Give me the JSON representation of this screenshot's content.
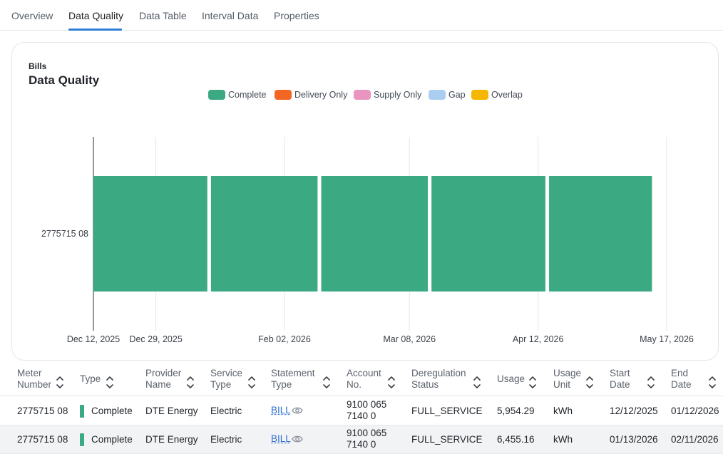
{
  "tabs": [
    {
      "label": "Overview"
    },
    {
      "label": "Data Quality",
      "active": true
    },
    {
      "label": "Data Table"
    },
    {
      "label": "Interval Data"
    },
    {
      "label": "Properties"
    }
  ],
  "card": {
    "subtitle": "Bills",
    "title": "Data Quality"
  },
  "legend": [
    {
      "label": "Complete",
      "color": "#3baa83"
    },
    {
      "label": "Delivery Only",
      "color": "#f26522"
    },
    {
      "label": "Supply Only",
      "color": "#ea94c2"
    },
    {
      "label": "Gap",
      "color": "#aacdf0"
    },
    {
      "label": "Overlap",
      "color": "#f5b700"
    }
  ],
  "chart_data": {
    "type": "bar",
    "orientation": "horizontal-timeline",
    "categories": [
      "2775715 08"
    ],
    "x_ticks": [
      "Dec 12, 2025",
      "Dec 29, 2025",
      "Feb 02, 2026",
      "Mar 08, 2026",
      "Apr 12, 2026",
      "May 17, 2026"
    ],
    "segments": [
      {
        "meter": "2775715 08",
        "start": "2025-12-12",
        "end": "2026-01-12",
        "status": "Complete"
      },
      {
        "meter": "2775715 08",
        "start": "2026-01-13",
        "end": "2026-02-11",
        "status": "Complete"
      },
      {
        "meter": "2775715 08",
        "start": "2026-02-12",
        "end": "2026-03-13",
        "status": "Complete"
      },
      {
        "meter": "2775715 08",
        "start": "2026-03-14",
        "end": "2026-04-14",
        "status": "Complete"
      },
      {
        "meter": "2775715 08",
        "start": "2026-04-15",
        "end": "2026-05-13",
        "status": "Complete"
      }
    ],
    "xlim": [
      "2025-12-12",
      "2026-05-17"
    ],
    "grid": true
  },
  "table": {
    "columns": [
      {
        "label": "Meter Number",
        "line1": "Meter",
        "line2": "Number"
      },
      {
        "label": "Type",
        "line1": "Type",
        "line2": ""
      },
      {
        "label": "Provider Name",
        "line1": "Provider",
        "line2": "Name"
      },
      {
        "label": "Service Type",
        "line1": "Service",
        "line2": "Type"
      },
      {
        "label": "Statement Type",
        "line1": "Statement",
        "line2": "Type"
      },
      {
        "label": "Account No.",
        "line1": "Account",
        "line2": "No."
      },
      {
        "label": "Deregulation Status",
        "line1": "Deregulation",
        "line2": "Status"
      },
      {
        "label": "Usage",
        "line1": "Usage",
        "line2": ""
      },
      {
        "label": "Usage Unit",
        "line1": "Usage",
        "line2": "Unit"
      },
      {
        "label": "Start Date",
        "line1": "Start",
        "line2": "Date"
      },
      {
        "label": "End Date",
        "line1": "End",
        "line2": "Date"
      }
    ],
    "rows": [
      {
        "meter_number": "2775715 08",
        "type": "Complete",
        "provider": "DTE Energy",
        "service_type": "Electric",
        "statement_type": "BILL",
        "account_line1": "9100 065",
        "account_line2": "7140 0",
        "dereg_status": "FULL_SERVICE",
        "usage": "5,954.29",
        "usage_unit": "kWh",
        "start_date": "12/12/2025",
        "end_date": "01/12/2026"
      },
      {
        "meter_number": "2775715 08",
        "type": "Complete",
        "provider": "DTE Energy",
        "service_type": "Electric",
        "statement_type": "BILL",
        "account_line1": "9100 065",
        "account_line2": "7140 0",
        "dereg_status": "FULL_SERVICE",
        "usage": "6,455.16",
        "usage_unit": "kWh",
        "start_date": "01/13/2026",
        "end_date": "02/11/2026"
      }
    ]
  }
}
